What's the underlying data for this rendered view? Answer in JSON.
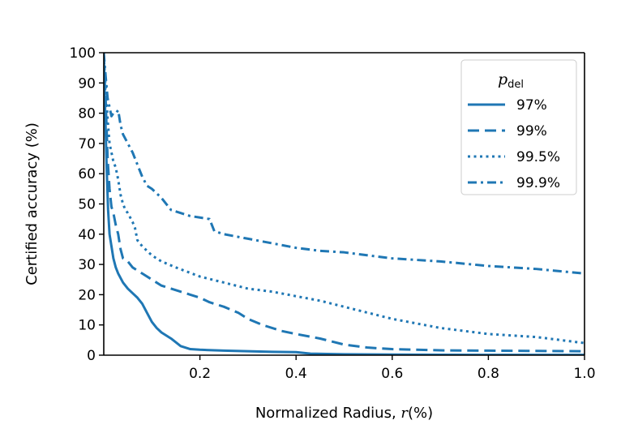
{
  "chart_data": {
    "type": "line",
    "title": "",
    "xlabel": "Normalized Radius, r(%)",
    "xlabel_prefix": "Normalized Radius, ",
    "xlabel_var": "r",
    "xlabel_suffix": "(%)",
    "ylabel": "Certified accuracy (%)",
    "xlim": [
      0,
      1.0
    ],
    "ylim": [
      0,
      100
    ],
    "xticks": [
      0.2,
      0.4,
      0.6,
      0.8,
      1.0
    ],
    "xtick_labels": [
      "0.2",
      "0.4",
      "0.6",
      "0.8",
      "1.0"
    ],
    "yticks": [
      0,
      10,
      20,
      30,
      40,
      50,
      60,
      70,
      80,
      90,
      100
    ],
    "ytick_labels": [
      "0",
      "10",
      "20",
      "30",
      "40",
      "50",
      "60",
      "70",
      "80",
      "90",
      "100"
    ],
    "grid": false,
    "legend": {
      "position": "top-right",
      "title_main": "p",
      "title_sub": "del",
      "title": "p_del"
    },
    "color": "#1f77b4",
    "series": [
      {
        "name": "97%",
        "dash": "solid",
        "x": [
          0,
          0.003,
          0.006,
          0.009,
          0.012,
          0.016,
          0.02,
          0.025,
          0.03,
          0.04,
          0.05,
          0.06,
          0.07,
          0.08,
          0.09,
          0.1,
          0.11,
          0.12,
          0.14,
          0.16,
          0.18,
          0.2,
          0.25,
          0.3,
          0.35,
          0.4,
          0.43,
          0.5,
          0.6,
          0.7,
          0.8,
          0.9,
          1.0
        ],
        "y": [
          98,
          80,
          62,
          48,
          40,
          36,
          32,
          29,
          27,
          24,
          22,
          20.5,
          19,
          17,
          14,
          11,
          9,
          7.5,
          5.5,
          3,
          2,
          1.8,
          1.5,
          1.3,
          1.1,
          1.0,
          0.5,
          0.3,
          0.2,
          0.15,
          0.1,
          0.1,
          0.1
        ]
      },
      {
        "name": "99%",
        "dash": "dashed",
        "x": [
          0,
          0.004,
          0.008,
          0.012,
          0.016,
          0.02,
          0.025,
          0.03,
          0.035,
          0.04,
          0.05,
          0.06,
          0.08,
          0.1,
          0.12,
          0.14,
          0.16,
          0.18,
          0.2,
          0.22,
          0.25,
          0.28,
          0.3,
          0.33,
          0.37,
          0.4,
          0.45,
          0.5,
          0.55,
          0.6,
          0.7,
          0.8,
          0.9,
          1.0
        ],
        "y": [
          97,
          84,
          65,
          55,
          49,
          47,
          43,
          40,
          35,
          32,
          31,
          29,
          27,
          25,
          23,
          22,
          21,
          20,
          19,
          17.5,
          16,
          14,
          12,
          10,
          8,
          7,
          5.5,
          3.5,
          2.5,
          2,
          1.6,
          1.5,
          1.4,
          1.3
        ]
      },
      {
        "name": "99.5%",
        "dash": "dotted",
        "x": [
          0,
          0.004,
          0.008,
          0.012,
          0.016,
          0.02,
          0.025,
          0.03,
          0.035,
          0.04,
          0.045,
          0.05,
          0.06,
          0.065,
          0.07,
          0.08,
          0.1,
          0.12,
          0.15,
          0.2,
          0.25,
          0.3,
          0.35,
          0.4,
          0.45,
          0.5,
          0.55,
          0.6,
          0.65,
          0.7,
          0.75,
          0.8,
          0.85,
          0.9,
          0.95,
          1.0
        ],
        "y": [
          99,
          88,
          78,
          70,
          67,
          64,
          62,
          58,
          53,
          50,
          48,
          47,
          44,
          42,
          38,
          36,
          33,
          31,
          29,
          26,
          24,
          22,
          21,
          19.5,
          18,
          16,
          14,
          12,
          10.5,
          9,
          8,
          7,
          6.5,
          6,
          5,
          4
        ]
      },
      {
        "name": "99.9%",
        "dash": "dashdot",
        "x": [
          0,
          0.004,
          0.008,
          0.012,
          0.016,
          0.02,
          0.025,
          0.03,
          0.035,
          0.04,
          0.05,
          0.06,
          0.07,
          0.08,
          0.09,
          0.1,
          0.12,
          0.14,
          0.16,
          0.18,
          0.2,
          0.22,
          0.23,
          0.25,
          0.3,
          0.35,
          0.4,
          0.45,
          0.5,
          0.55,
          0.6,
          0.7,
          0.8,
          0.9,
          1.0
        ],
        "y": [
          100,
          92,
          85,
          82,
          79,
          80,
          80,
          81,
          76,
          73,
          70,
          67,
          63,
          59,
          56,
          55,
          52,
          48,
          47,
          46,
          45.5,
          45,
          41,
          40,
          38.5,
          37,
          35.5,
          34.5,
          34,
          33,
          32,
          31,
          29.5,
          28.5,
          27
        ]
      }
    ],
    "legend_entries": [
      "97%",
      "99%",
      "99.5%",
      "99.9%"
    ]
  }
}
